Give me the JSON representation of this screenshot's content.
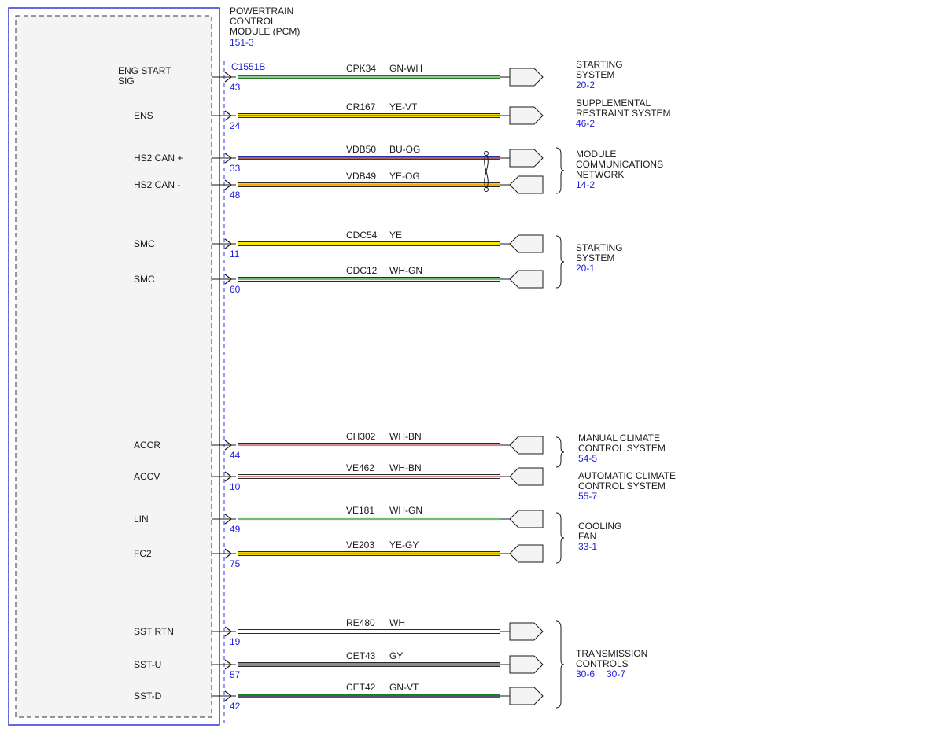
{
  "module": {
    "title_lines": [
      "POWERTRAIN",
      "CONTROL",
      "MODULE (PCM)"
    ],
    "ref": "151-3",
    "connector": "C1551B"
  },
  "wires": [
    {
      "signal": [
        "ENG START",
        "SIG"
      ],
      "pin": "43",
      "circuit": "CPK34",
      "color_code": "GN-WH",
      "colors": [
        "#1f7a1f",
        "#f2f2f2"
      ],
      "connector": "right"
    },
    {
      "signal": [
        "ENS"
      ],
      "pin": "24",
      "circuit": "CR167",
      "color_code": "YE-VT",
      "colors": [
        "#f5d800",
        "#7a3fa0"
      ],
      "connector": "right"
    },
    {
      "signal": [
        "HS2 CAN +"
      ],
      "pin": "33",
      "circuit": "VDB50",
      "color_code": "BU-OG",
      "colors": [
        "#2a2ab8",
        "#ff8c00"
      ],
      "connector": "right"
    },
    {
      "signal": [
        "HS2 CAN -"
      ],
      "pin": "48",
      "circuit": "VDB49",
      "color_code": "YE-OG",
      "colors": [
        "#f5d800",
        "#ff8c00"
      ],
      "connector": "left"
    },
    {
      "signal": [
        "SMC"
      ],
      "pin": "11",
      "circuit": "CDC54",
      "color_code": "YE",
      "colors": [
        "#f5e600",
        "#f5e600"
      ],
      "connector": "left"
    },
    {
      "signal": [
        "SMC"
      ],
      "pin": "60",
      "circuit": "CDC12",
      "color_code": "WH-GN",
      "colors": [
        "#f2f2f2",
        "#1f9a1f"
      ],
      "connector": "left"
    },
    {
      "signal": [
        "ACCR"
      ],
      "pin": "44",
      "circuit": "CH302",
      "color_code": "WH-BN",
      "colors": [
        "#f2f2f2",
        "#c04040"
      ],
      "connector": "left"
    },
    {
      "signal": [
        "ACCV"
      ],
      "pin": "10",
      "circuit": "VE462",
      "color_code": "WH-BN",
      "colors": [
        "#f2f2f2",
        "#c04040"
      ],
      "connector": "left"
    },
    {
      "signal": [
        "LIN"
      ],
      "pin": "49",
      "circuit": "VE181",
      "color_code": "WH-GN",
      "colors": [
        "#f2f2f2",
        "#1f9a1f"
      ],
      "connector": "left"
    },
    {
      "signal": [
        "FC2"
      ],
      "pin": "75",
      "circuit": "VE203",
      "color_code": "YE-GY",
      "colors": [
        "#f5d800",
        "#8c8c8c"
      ],
      "connector": "left"
    },
    {
      "signal": [
        "SST RTN"
      ],
      "pin": "19",
      "circuit": "RE480",
      "color_code": "WH",
      "colors": [
        "#ffffff",
        "#ffffff"
      ],
      "connector": "right"
    },
    {
      "signal": [
        "SST-U"
      ],
      "pin": "57",
      "circuit": "CET43",
      "color_code": "GY",
      "colors": [
        "#8c8c8c",
        "#8c8c8c"
      ],
      "connector": "right"
    },
    {
      "signal": [
        "SST-D"
      ],
      "pin": "42",
      "circuit": "CET42",
      "color_code": "GN-VT",
      "colors": [
        "#1f7a1f",
        "#7a3fa0"
      ],
      "connector": "right"
    }
  ],
  "destinations": [
    {
      "lines": [
        "STARTING",
        "SYSTEM"
      ],
      "refs": [
        "20-2"
      ]
    },
    {
      "lines": [
        "SUPPLEMENTAL",
        "RESTRAINT SYSTEM"
      ],
      "refs": [
        "46-2"
      ]
    },
    {
      "lines": [
        "MODULE",
        "COMMUNICATIONS",
        "NETWORK"
      ],
      "refs": [
        "14-2"
      ]
    },
    {
      "lines": [
        "STARTING",
        "SYSTEM"
      ],
      "refs": [
        "20-1"
      ]
    },
    {
      "lines": [
        "MANUAL CLIMATE",
        "CONTROL SYSTEM"
      ],
      "refs": [
        "54-5"
      ]
    },
    {
      "lines": [
        "AUTOMATIC CLIMATE",
        "CONTROL SYSTEM"
      ],
      "refs": [
        "55-7"
      ]
    },
    {
      "lines": [
        "COOLING",
        "FAN"
      ],
      "refs": [
        "33-1"
      ]
    },
    {
      "lines": [
        "TRANSMISSION",
        "CONTROLS"
      ],
      "refs": [
        "30-6",
        "30-7"
      ]
    }
  ]
}
